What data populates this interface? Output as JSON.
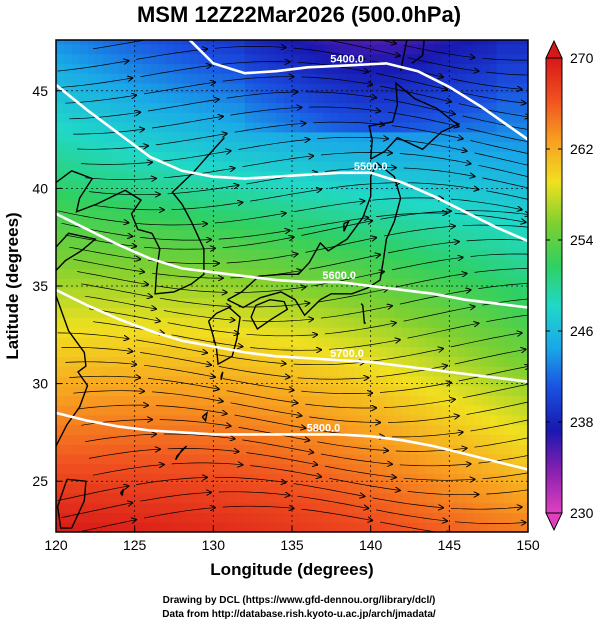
{
  "title": "MSM 12Z22Mar2026 (500.0hPa)",
  "credits": [
    "Drawing by DCL (https://www.gfd-dennou.org/library/dcl/)",
    "Data from http://database.rish.kyoto-u.ac.jp/arch/jmadata/"
  ],
  "chart_data": {
    "type": "heatmap",
    "title": "MSM 12Z22Mar2026 (500.0hPa)",
    "xlabel": "Longitude (degrees)",
    "ylabel": "Latitude  (degrees)",
    "xlim": [
      120,
      150
    ],
    "ylim": [
      22.4,
      47.6
    ],
    "xticks": [
      120,
      125,
      130,
      135,
      140,
      145,
      150
    ],
    "yticks": [
      25,
      30,
      35,
      40,
      45
    ],
    "grid": true,
    "colorbar": {
      "min": 230,
      "max": 270,
      "ticks": [
        230,
        238,
        246,
        254,
        262,
        270
      ],
      "extend": "both",
      "palette": [
        "#e040c0",
        "#8a20b0",
        "#1818b0",
        "#1a4fe0",
        "#1aa8e8",
        "#20d8c8",
        "#30d060",
        "#7ed030",
        "#f0e020",
        "#f8a020",
        "#f05020",
        "#d81818"
      ]
    },
    "height_contours": [
      {
        "label": "5400.0",
        "label_lon": 138.5,
        "label_lat": 46.3
      },
      {
        "label": "5500.0",
        "label_lon": 140.0,
        "label_lat": 40.8
      },
      {
        "label": "5600.0",
        "label_lon": 138.0,
        "label_lat": 35.2
      },
      {
        "label": "5700.0",
        "label_lon": 138.5,
        "label_lat": 31.2
      },
      {
        "label": "5800.0",
        "label_lon": 137.0,
        "label_lat": 27.4
      }
    ],
    "overlay": "wind streamlines from west"
  }
}
